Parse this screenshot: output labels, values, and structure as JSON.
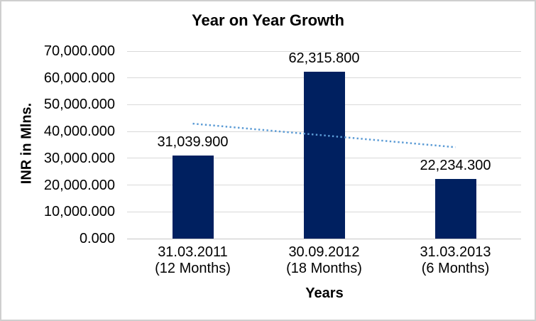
{
  "window": {
    "background_color": "#FFFFFF",
    "border_color": "#CFCFCF"
  },
  "chart_data": {
    "type": "bar",
    "title": "Year on Year Growth",
    "xlabel": "Years",
    "ylabel": "INR in Mlns.",
    "categories": [
      {
        "line1": "31.03.2011",
        "line2": "(12 Months)"
      },
      {
        "line1": "30.09.2012",
        "line2": "(18 Months)"
      },
      {
        "line1": "31.03.2013",
        "line2": "(6 Months)"
      }
    ],
    "values": [
      31039.9,
      62315.8,
      22234.3
    ],
    "data_labels": [
      "31,039.900",
      "62,315.800",
      "22,234.300"
    ],
    "y_ticks": [
      {
        "label": "70,000.000",
        "value": 70000
      },
      {
        "label": "60,000.000",
        "value": 60000
      },
      {
        "label": "50,000.000",
        "value": 50000
      },
      {
        "label": "40,000.000",
        "value": 40000
      },
      {
        "label": "30,000.000",
        "value": 30000
      },
      {
        "label": "20,000.000",
        "value": 20000
      },
      {
        "label": "10,000.000",
        "value": 10000
      },
      {
        "label": "0.000",
        "value": 0
      }
    ],
    "ylim": [
      0,
      70000
    ],
    "grid": "horizontal",
    "legend_position": "none",
    "bar_color": "#002060",
    "gridline_color": "#D9D9D9",
    "axis_line_color": "#C6C6C6",
    "text_color": "#000000",
    "trendline": {
      "type": "linear",
      "style": "dotted",
      "color": "#5B9BD5",
      "start_value": 42933,
      "end_value": 34127
    }
  }
}
